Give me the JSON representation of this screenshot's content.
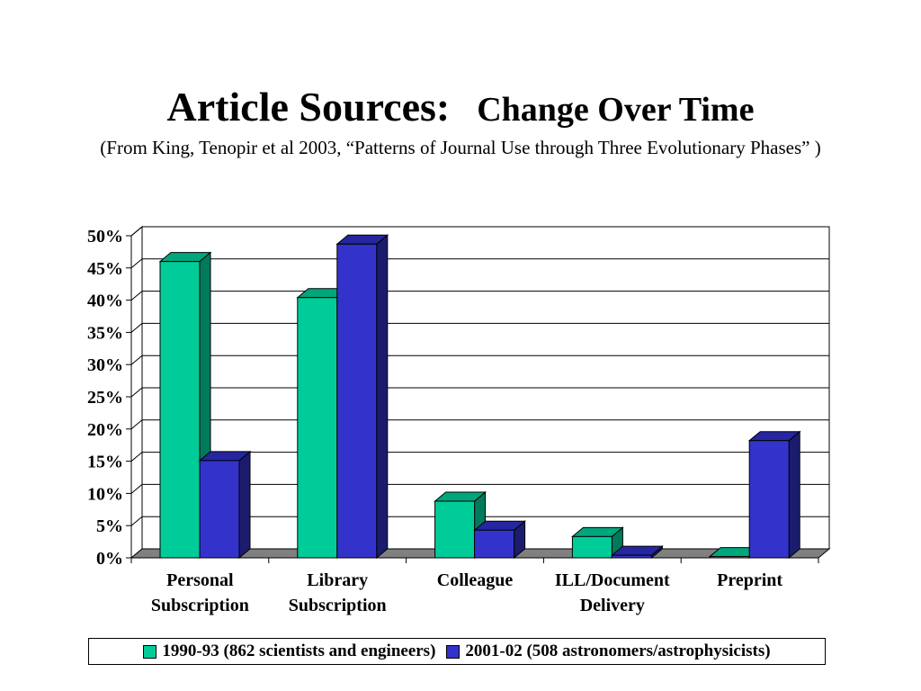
{
  "header": {
    "title_main": "Article Sources:",
    "title_rest": "Change Over Time",
    "subtitle": "(From King, Tenopir et al 2003, “Patterns of Journal Use through Three Evolutionary Phases” )"
  },
  "chart_data": {
    "type": "bar",
    "style": "3d-clustered-column",
    "categories": [
      [
        "Personal",
        "Subscription"
      ],
      [
        "Library",
        "Subscription"
      ],
      [
        "Colleague"
      ],
      [
        "ILL/Document",
        "Delivery"
      ],
      [
        "Preprint"
      ]
    ],
    "series": [
      {
        "name": "1990-93 (862 scientists and engineers)",
        "values": [
          46,
          40.4,
          8.8,
          3.3,
          0.2
        ],
        "color": "#00CC99",
        "side_color": "#007A5A",
        "top_color": "#00A67C"
      },
      {
        "name": "2001-02 (508 astronomers/astrophysicists)",
        "values": [
          15.1,
          48.7,
          4.3,
          0.4,
          18.2
        ],
        "color": "#3333CC",
        "side_color": "#1C1C6E",
        "top_color": "#2626A0"
      }
    ],
    "ylim": [
      0,
      50
    ],
    "yticks": [
      "0%",
      "5%",
      "10%",
      "15%",
      "20%",
      "25%",
      "30%",
      "35%",
      "40%",
      "45%",
      "50%"
    ],
    "grid": true,
    "floor_color": "#808080",
    "legend_position": "bottom"
  }
}
